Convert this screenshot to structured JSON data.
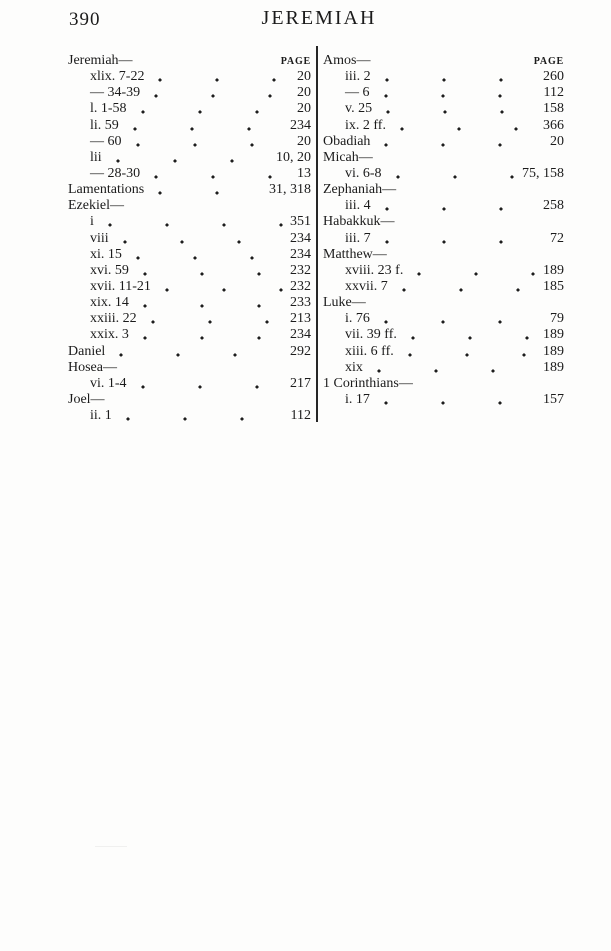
{
  "page": {
    "number": "390",
    "running_title": "JEREMIAH"
  },
  "index": {
    "page_column_label": "PAGE",
    "left_column": {
      "header_book": "Jeremiah—",
      "entries": [
        {
          "ref": "xlix. 7-22",
          "page": "20",
          "indent": true
        },
        {
          "ref": "— 34-39",
          "page": "20",
          "indent": true
        },
        {
          "ref": "l. 1-58",
          "page": "20",
          "indent": true
        },
        {
          "ref": "li. 59",
          "page": "234",
          "indent": true
        },
        {
          "ref": "— 60",
          "page": "20",
          "indent": true
        },
        {
          "ref": "lii",
          "page": "10, 20",
          "indent": true
        },
        {
          "ref": "— 28-30",
          "page": "13",
          "indent": true
        },
        {
          "ref": "Lamentations",
          "page": "31, 318",
          "indent": false
        },
        {
          "ref": "Ezekiel—",
          "page": "",
          "indent": false
        },
        {
          "ref": "i",
          "page": "351",
          "indent": true
        },
        {
          "ref": "viii",
          "page": "234",
          "indent": true
        },
        {
          "ref": "xi. 15",
          "page": "234",
          "indent": true
        },
        {
          "ref": "xvi. 59",
          "page": "232",
          "indent": true
        },
        {
          "ref": "xvii. 11-21",
          "page": "232",
          "indent": true
        },
        {
          "ref": "xix. 14",
          "page": "233",
          "indent": true
        },
        {
          "ref": "xxiii. 22",
          "page": "213",
          "indent": true
        },
        {
          "ref": "xxix. 3",
          "page": "234",
          "indent": true
        },
        {
          "ref": "Daniel",
          "page": "292",
          "indent": false
        },
        {
          "ref": "Hosea—",
          "page": "",
          "indent": false
        },
        {
          "ref": "vi. 1-4",
          "page": "217",
          "indent": true
        },
        {
          "ref": "Joel—",
          "page": "",
          "indent": false
        },
        {
          "ref": "ii. 1",
          "page": "112",
          "indent": true
        }
      ]
    },
    "right_column": {
      "header_book": "Amos—",
      "entries": [
        {
          "ref": "iii. 2",
          "page": "260",
          "indent": true
        },
        {
          "ref": "— 6",
          "page": "112",
          "indent": true
        },
        {
          "ref": "v. 25",
          "page": "158",
          "indent": true
        },
        {
          "ref": "ix. 2 ff.",
          "page": "366",
          "indent": true
        },
        {
          "ref": "Obadiah",
          "page": "20",
          "indent": false
        },
        {
          "ref": "Micah—",
          "page": "",
          "indent": false
        },
        {
          "ref": "vi. 6-8",
          "page": "75, 158",
          "indent": true
        },
        {
          "ref": "Zephaniah—",
          "page": "",
          "indent": false
        },
        {
          "ref": "iii. 4",
          "page": "258",
          "indent": true
        },
        {
          "ref": "Habakkuk—",
          "page": "",
          "indent": false
        },
        {
          "ref": "iii. 7",
          "page": "72",
          "indent": true
        },
        {
          "ref": "Matthew—",
          "page": "",
          "indent": false
        },
        {
          "ref": "xviii. 23 f.",
          "page": "189",
          "indent": true
        },
        {
          "ref": "xxvii. 7",
          "page": "185",
          "indent": true
        },
        {
          "ref": "Luke—",
          "page": "",
          "indent": false
        },
        {
          "ref": "i. 76",
          "page": "79",
          "indent": true
        },
        {
          "ref": "vii. 39 ff.",
          "page": "189",
          "indent": true
        },
        {
          "ref": "xiii. 6 ff.",
          "page": "189",
          "indent": true
        },
        {
          "ref": "xix",
          "page": "189",
          "indent": true
        },
        {
          "ref": "1 Corinthians—",
          "page": "",
          "indent": false
        },
        {
          "ref": "i. 17",
          "page": "157",
          "indent": true
        }
      ]
    }
  }
}
